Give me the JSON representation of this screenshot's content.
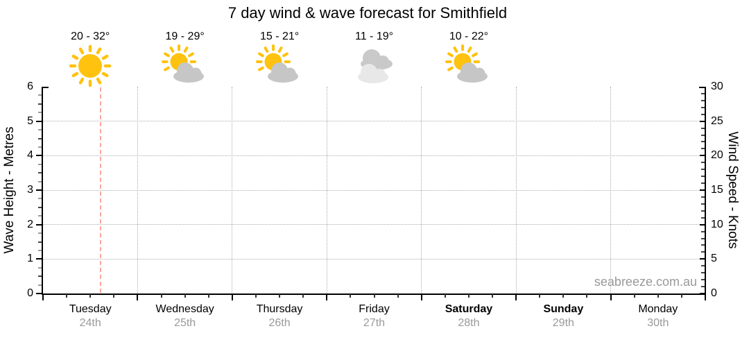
{
  "title": "7 day wind & wave forecast for Smithfield",
  "watermark": "seabreeze.com.au",
  "days": [
    {
      "name": "Tuesday",
      "date": "24th",
      "temp": "20 - 32°",
      "icon": "sunny",
      "weekend": false
    },
    {
      "name": "Wednesday",
      "date": "25th",
      "temp": "19 - 29°",
      "icon": "partly-cloudy",
      "weekend": false
    },
    {
      "name": "Thursday",
      "date": "26th",
      "temp": "15 - 21°",
      "icon": "partly-cloudy",
      "weekend": false
    },
    {
      "name": "Friday",
      "date": "27th",
      "temp": "11 - 19°",
      "icon": "cloudy",
      "weekend": false
    },
    {
      "name": "Saturday",
      "date": "28th",
      "temp": "10 - 22°",
      "icon": "partly-cloudy",
      "weekend": true
    },
    {
      "name": "Sunday",
      "date": "29th",
      "temp": "",
      "icon": "none",
      "weekend": true
    },
    {
      "name": "Monday",
      "date": "30th",
      "temp": "",
      "icon": "none",
      "weekend": false
    }
  ],
  "chart_data": {
    "type": "line",
    "title": "7 day wind & wave forecast for Smithfield",
    "x_categories": [
      "Tuesday 24th",
      "Wednesday 25th",
      "Thursday 26th",
      "Friday 27th",
      "Saturday 28th",
      "Sunday 29th",
      "Monday 30th"
    ],
    "series": [],
    "y_left": {
      "label": "Wave Height - Metres",
      "min": 0,
      "max": 6,
      "major_tick_step": 1,
      "minor_tick_step": 0.25,
      "tick_labels": [
        "0",
        "1",
        "2",
        "3",
        "4",
        "5",
        "6"
      ]
    },
    "y_right": {
      "label": "Wind Speed - Knots",
      "min": 0,
      "max": 30,
      "major_tick_step": 5,
      "minor_tick_step": 1,
      "tick_labels": [
        "0",
        "5",
        "10",
        "15",
        "20",
        "25",
        "30"
      ]
    },
    "grid": true,
    "legend": false,
    "now_marker": {
      "day_index": 0,
      "day_fraction": 0.61
    }
  },
  "colors": {
    "sun": "#FFC20E",
    "cloud": "#C6C6C6",
    "cloud_dark": "#C9C9C9",
    "cloud_light": "#E8E8E8",
    "grid_line": "#ABABAB",
    "now_line": "#F9A8A0",
    "axis": "#000000",
    "muted_text": "#999999"
  }
}
